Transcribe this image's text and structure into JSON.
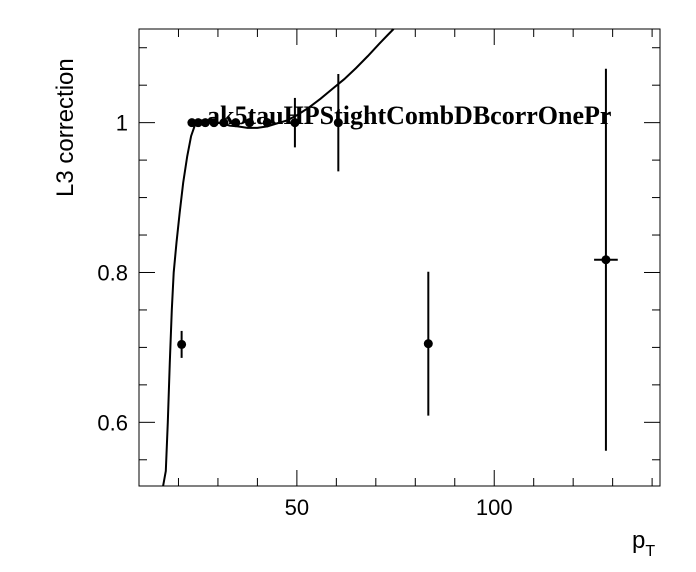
{
  "chart_data": {
    "type": "scatter",
    "title": "",
    "overlay_label": "ak5tauHPStightCombDBcorrOnePr",
    "xlabel": "p",
    "xlabel_sub": "T",
    "ylabel": "L3 correction",
    "xlim": [
      10,
      142
    ],
    "ylim": [
      0.515,
      1.125
    ],
    "x_ticks": [
      50,
      100
    ],
    "y_ticks": [
      0.6,
      0.8,
      1
    ],
    "y_tick_labels": [
      "0.6",
      "0.8",
      "1"
    ],
    "x_tick_labels": [
      "50",
      "100"
    ],
    "grid": false,
    "points": [
      {
        "x": 20.8,
        "y": 0.704,
        "xerr": 0.4,
        "yerr": 0.018
      },
      {
        "x": 23.4,
        "y": 1.0,
        "xerr": 0.5,
        "yerr": 0.002
      },
      {
        "x": 25.0,
        "y": 1.0,
        "xerr": 0.5,
        "yerr": 0.002
      },
      {
        "x": 26.8,
        "y": 1.0,
        "xerr": 0.5,
        "yerr": 0.002
      },
      {
        "x": 29.0,
        "y": 1.0,
        "xerr": 0.6,
        "yerr": 0.002
      },
      {
        "x": 31.5,
        "y": 1.0,
        "xerr": 0.7,
        "yerr": 0.002
      },
      {
        "x": 34.5,
        "y": 1.0,
        "xerr": 0.8,
        "yerr": 0.003
      },
      {
        "x": 38.0,
        "y": 1.0,
        "xerr": 0.8,
        "yerr": 0.004
      },
      {
        "x": 42.5,
        "y": 1.0,
        "xerr": 1.0,
        "yerr": 0.006
      },
      {
        "x": 49.5,
        "y": 1.0,
        "xerr": 1.2,
        "yerr": 0.033
      },
      {
        "x": 60.5,
        "y": 1.0,
        "xerr": 1.0,
        "yerr": 0.065
      },
      {
        "x": 83.3,
        "y": 0.705,
        "xerr": 0.4,
        "yerr": 0.096
      },
      {
        "x": 128.3,
        "y": 0.817,
        "xerr": 3.0,
        "yerr": 0.255
      }
    ],
    "fit_curve": [
      [
        16.1,
        0.515
      ],
      [
        16.8,
        0.535
      ],
      [
        17.3,
        0.6
      ],
      [
        17.8,
        0.68
      ],
      [
        18.3,
        0.75
      ],
      [
        18.8,
        0.8
      ],
      [
        19.5,
        0.84
      ],
      [
        20.3,
        0.88
      ],
      [
        21.2,
        0.92
      ],
      [
        22.2,
        0.955
      ],
      [
        23.2,
        0.982
      ],
      [
        24.2,
        0.997
      ],
      [
        25.5,
        1.003
      ],
      [
        27.0,
        1.003
      ],
      [
        29.0,
        1.001
      ],
      [
        31.0,
        0.999
      ],
      [
        33.0,
        0.996
      ],
      [
        35.0,
        0.995
      ],
      [
        37.5,
        0.993
      ],
      [
        40.0,
        0.993
      ],
      [
        42.5,
        0.995
      ],
      [
        45.0,
        0.999
      ],
      [
        47.5,
        1.003
      ],
      [
        50.0,
        1.01
      ],
      [
        53.0,
        1.02
      ],
      [
        56.0,
        1.032
      ],
      [
        59.0,
        1.045
      ],
      [
        62.0,
        1.058
      ],
      [
        65.0,
        1.073
      ],
      [
        68.0,
        1.089
      ],
      [
        71.0,
        1.106
      ],
      [
        73.0,
        1.117
      ],
      [
        74.5,
        1.125
      ]
    ]
  }
}
